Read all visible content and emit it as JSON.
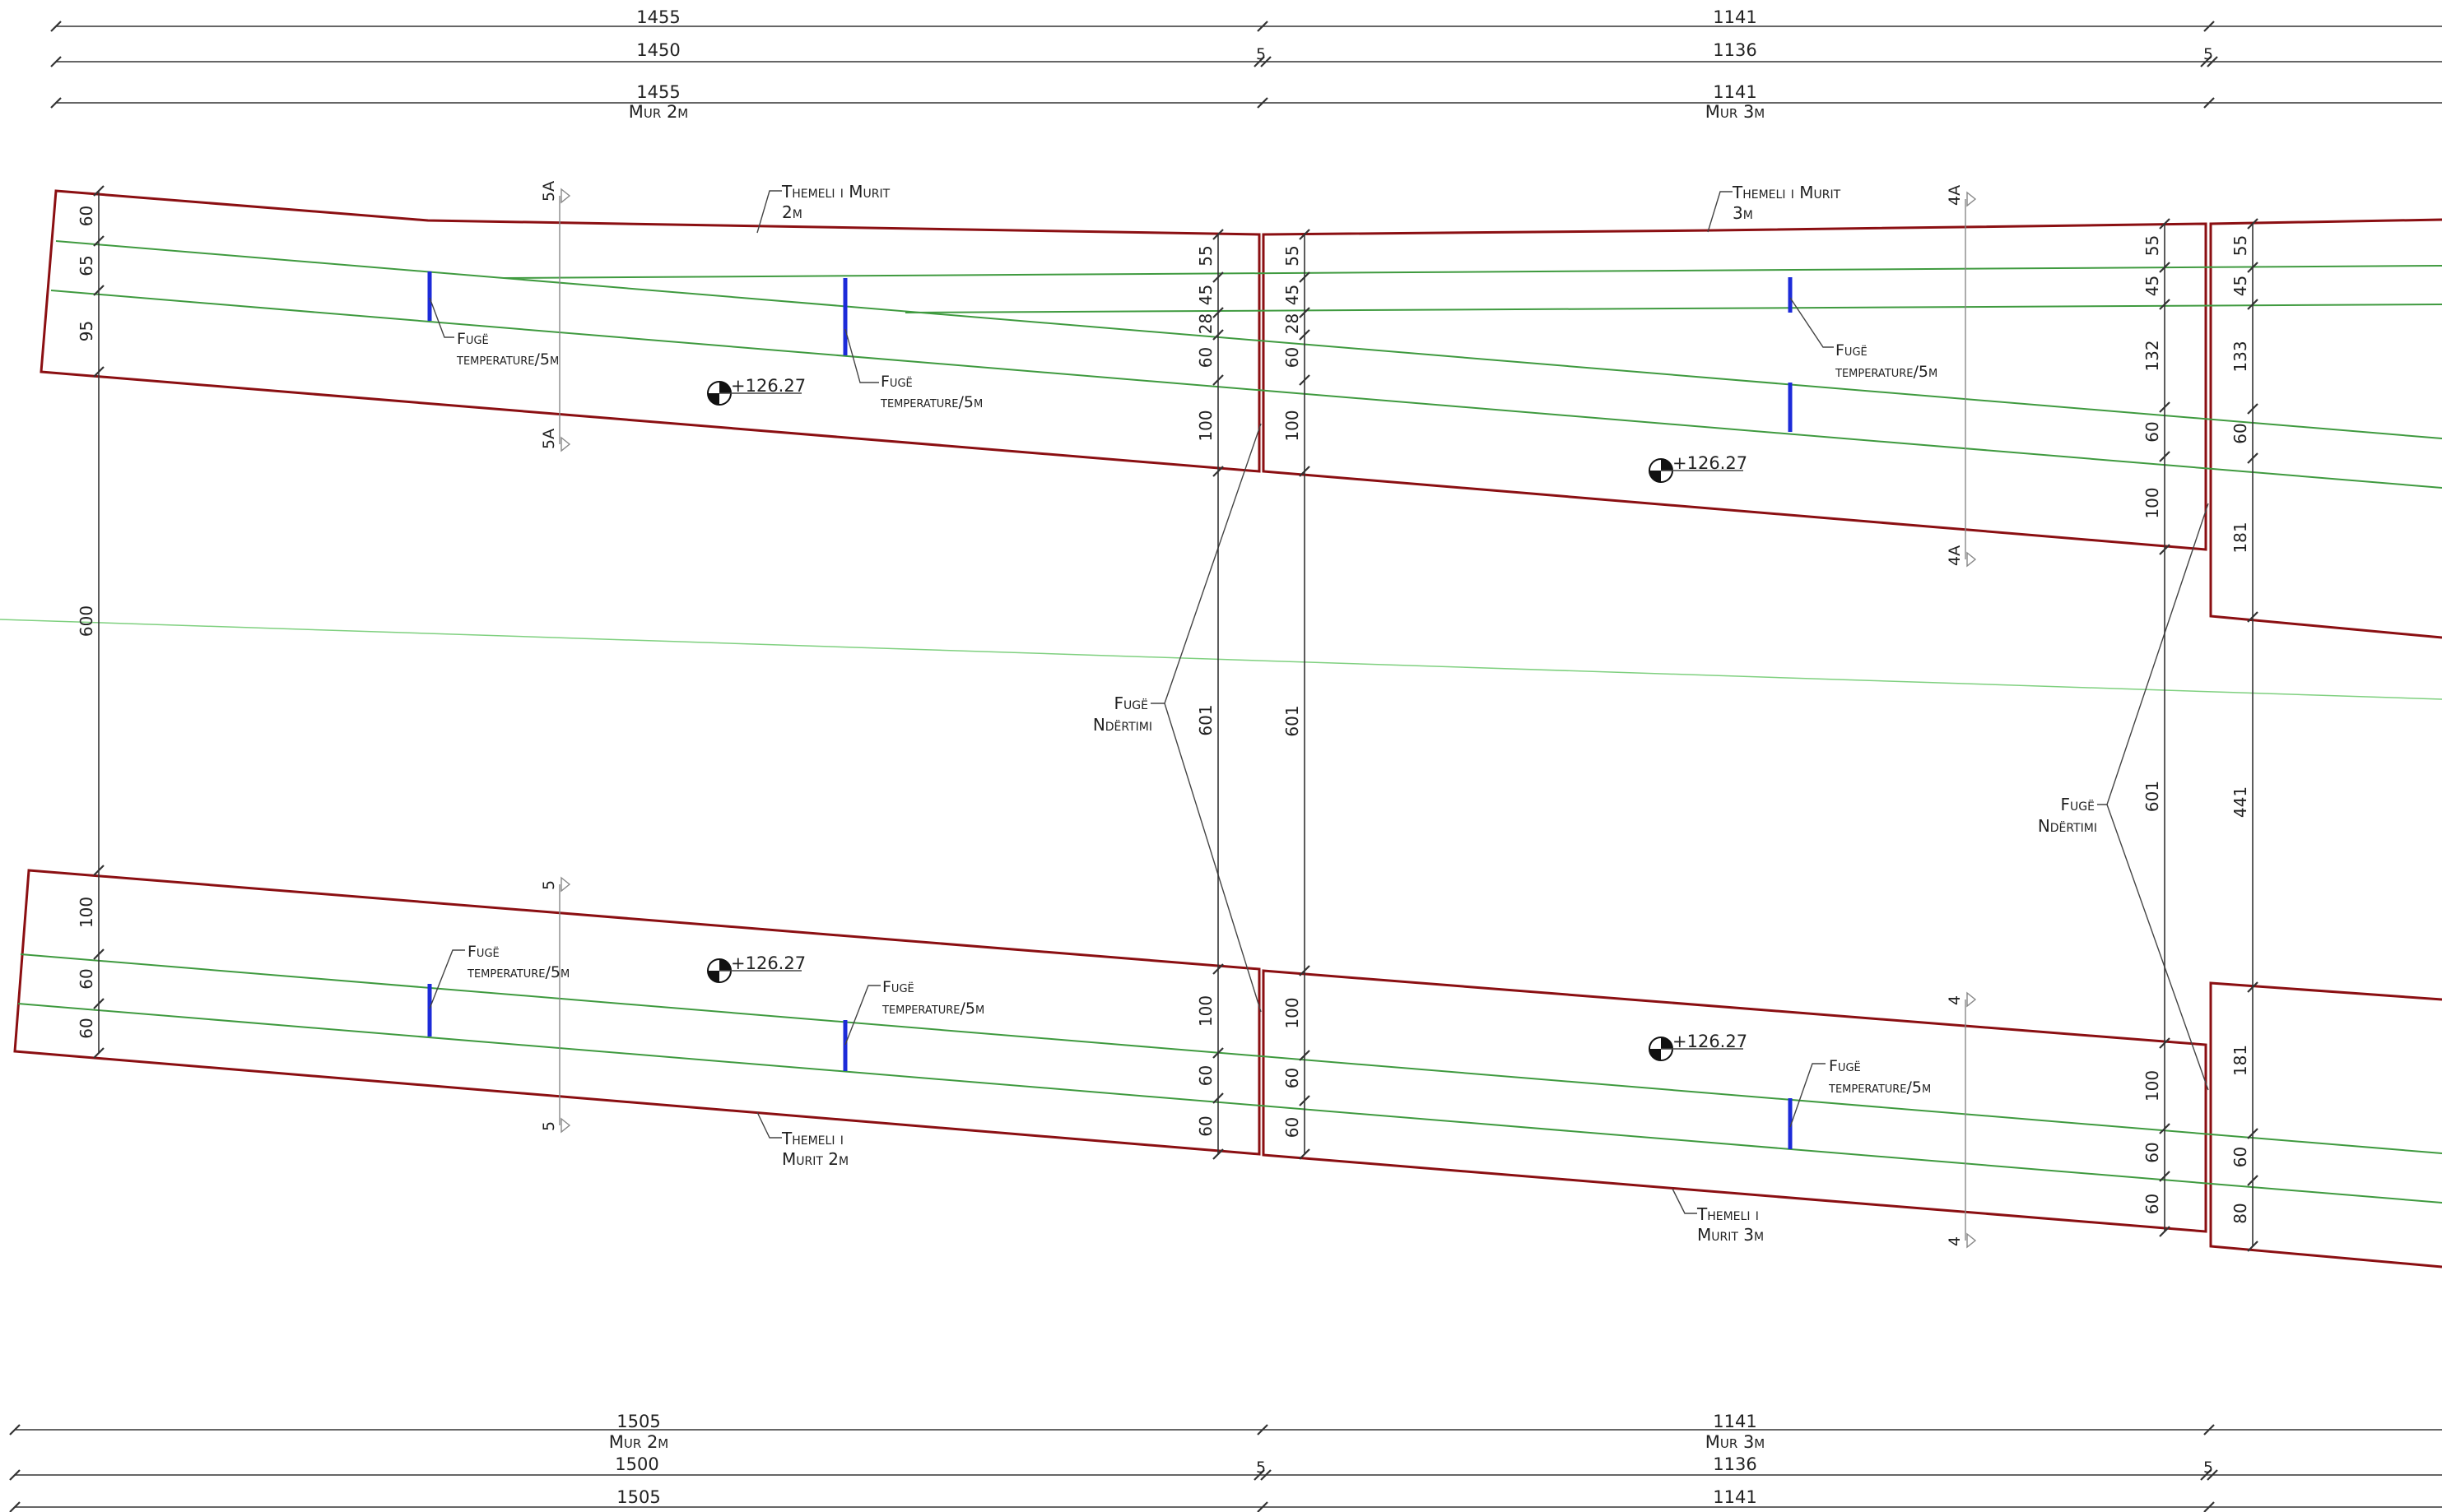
{
  "top_dims": {
    "row1_left": "1455",
    "row1_right": "1141",
    "row2_left": "1450",
    "row2_right": "1136",
    "row3_left": "1455",
    "row3_left_label": "Mur 2m",
    "row3_right": "1141",
    "row3_right_label": "Mur 3m",
    "joint": "5"
  },
  "bottom_dims": {
    "row1_left": "1505",
    "row1_left_label": "Mur 2m",
    "row1_right": "1141",
    "row1_right_label": "Mur 3m",
    "row2_left": "1500",
    "row2_right": "1136",
    "row3_left": "1505",
    "row3_right": "1141",
    "joint": "5"
  },
  "labels": {
    "themeli_top_2m_l1": "Themeli i Murit",
    "themeli_top_2m_l2": "2m",
    "themeli_top_3m_l1": "Themeli i Murit",
    "themeli_top_3m_l2": "3m",
    "themeli_bot_2m_l1": "Themeli i",
    "themeli_bot_2m_l2": "Murit 2m",
    "themeli_bot_3m_l1": "Themeli i",
    "themeli_bot_3m_l2": "Murit 3m",
    "fuge_temp_l1": "Fugë",
    "fuge_temp_l2": "temperature/5m",
    "fuge_nd_l1": "Fugë",
    "fuge_nd_l2": "Ndërtimi",
    "elevation": "+126.27"
  },
  "sections": {
    "s5a": "5A",
    "s4a": "4A",
    "s5": "5",
    "s4": "4"
  },
  "vertical_dims": {
    "left_top": [
      "60",
      "65",
      "95"
    ],
    "left_gap": "600",
    "left_bot": [
      "100",
      "60",
      "60"
    ],
    "c1_top": [
      "55",
      "45",
      "28",
      "60",
      "100"
    ],
    "c1_mid": "601",
    "c1_bot": [
      "100",
      "60",
      "60"
    ],
    "c2_top": [
      "55",
      "45",
      "28",
      "60",
      "100"
    ],
    "c2_mid": "601",
    "c2_bot": [
      "100",
      "60",
      "60"
    ],
    "r1_top": [
      "55",
      "45",
      "132",
      "60",
      "100"
    ],
    "r1_mid": "601",
    "r1_bot": [
      "100",
      "60",
      "60"
    ],
    "r2_top": [
      "55",
      "45",
      "133",
      "60",
      "181"
    ],
    "r2_mid": "441",
    "r2_bot": [
      "181",
      "60",
      "80"
    ]
  }
}
